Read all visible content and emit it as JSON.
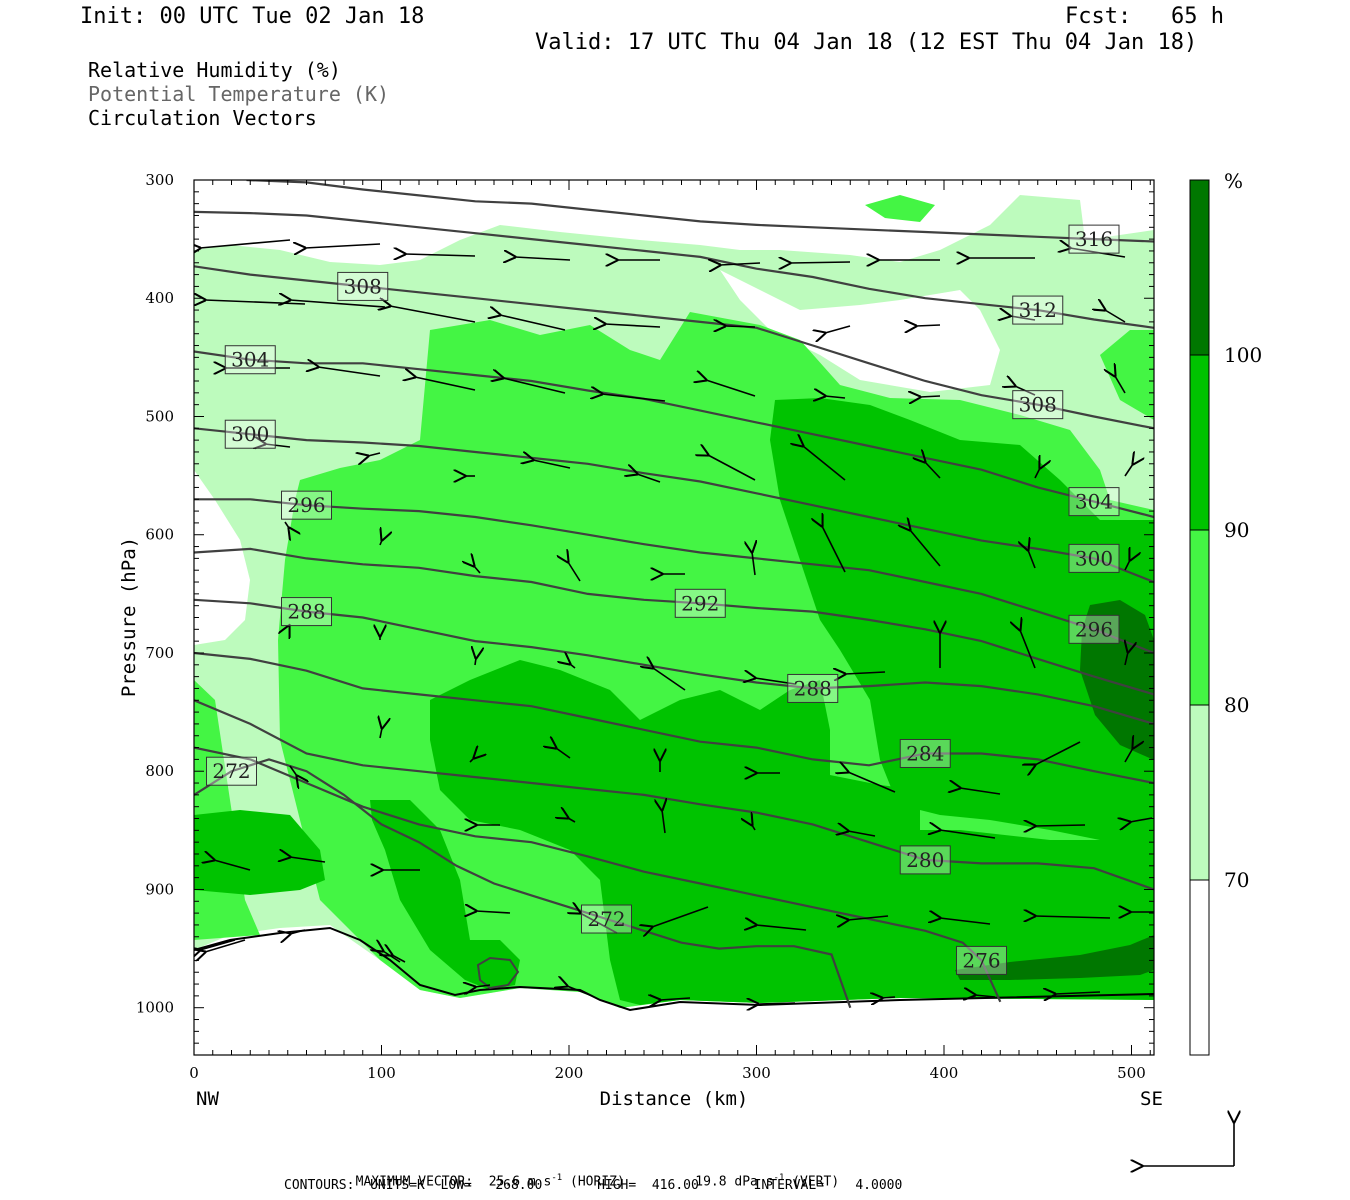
{
  "header": {
    "init": "Init: 00 UTC Tue 02 Jan 18",
    "fcst": "Fcst:   65 h",
    "valid": "Valid: 17 UTC Thu 04 Jan 18 (12 EST Thu 04 Jan 18)"
  },
  "legend": {
    "fields": [
      {
        "label": "Relative Humidity (%)",
        "color": "#000000"
      },
      {
        "label": "Potential Temperature (K)",
        "color": "#555555"
      },
      {
        "label": "Circulation Vectors",
        "color": "#000000"
      }
    ]
  },
  "footer": {
    "max_vector_prefix": "MAXIMUM VECTOR:  25.6 m s",
    "max_vector_horiz": "(HORIZ)",
    "max_vector_vert_prefix": "19.8 dPa s",
    "max_vector_vert": "(VERT)",
    "exp": "-1",
    "contours": "CONTOURS:  UNITS=K  LOW=   268.00       HIGH=  416.00       INTERVAL=    4.0000"
  },
  "chart_data": {
    "type": "cross-section",
    "xlabel": "Distance (km)",
    "ylabel": "Pressure (hPa)",
    "x_ticks": [
      0,
      100,
      200,
      300,
      400,
      500
    ],
    "y_ticks": [
      300,
      400,
      500,
      600,
      700,
      800,
      900,
      1000
    ],
    "xlim": [
      0,
      512
    ],
    "ylim": [
      300,
      1040
    ],
    "endpoints": {
      "left": "NW",
      "right": "SE"
    },
    "colorbar": {
      "unit": "%",
      "levels": [
        70,
        80,
        90,
        100
      ],
      "colors": [
        "#ffffff",
        "#bdfbbd",
        "#44f544",
        "#00c300",
        "#007700"
      ]
    },
    "theta_contours": [
      {
        "value": 272,
        "points": [
          [
            0,
            820
          ],
          [
            20,
            800
          ],
          [
            40,
            790
          ],
          [
            60,
            800
          ],
          [
            80,
            820
          ],
          [
            100,
            845
          ],
          [
            120,
            860
          ],
          [
            140,
            880
          ],
          [
            160,
            895
          ],
          [
            180,
            905
          ],
          [
            200,
            915
          ],
          [
            220,
            925
          ],
          [
            240,
            935
          ],
          [
            260,
            945
          ],
          [
            280,
            950
          ],
          [
            300,
            948
          ],
          [
            320,
            948
          ],
          [
            340,
            955
          ],
          [
            350,
            1000
          ]
        ]
      },
      {
        "value": 276,
        "points": [
          [
            0,
            780
          ],
          [
            30,
            790
          ],
          [
            60,
            810
          ],
          [
            90,
            830
          ],
          [
            120,
            845
          ],
          [
            150,
            855
          ],
          [
            180,
            860
          ],
          [
            210,
            872
          ],
          [
            240,
            885
          ],
          [
            270,
            895
          ],
          [
            300,
            905
          ],
          [
            330,
            915
          ],
          [
            360,
            925
          ],
          [
            390,
            935
          ],
          [
            410,
            945
          ],
          [
            420,
            960
          ],
          [
            430,
            995
          ]
        ]
      },
      {
        "value": 280,
        "points": [
          [
            0,
            740
          ],
          [
            30,
            760
          ],
          [
            60,
            785
          ],
          [
            90,
            795
          ],
          [
            120,
            800
          ],
          [
            150,
            805
          ],
          [
            180,
            810
          ],
          [
            210,
            815
          ],
          [
            240,
            820
          ],
          [
            270,
            828
          ],
          [
            300,
            835
          ],
          [
            330,
            845
          ],
          [
            360,
            860
          ],
          [
            390,
            875
          ],
          [
            420,
            878
          ],
          [
            450,
            878
          ],
          [
            480,
            882
          ],
          [
            512,
            900
          ]
        ]
      },
      {
        "value": 284,
        "points": [
          [
            0,
            700
          ],
          [
            30,
            705
          ],
          [
            60,
            715
          ],
          [
            90,
            730
          ],
          [
            120,
            735
          ],
          [
            150,
            740
          ],
          [
            180,
            745
          ],
          [
            210,
            755
          ],
          [
            240,
            765
          ],
          [
            270,
            775
          ],
          [
            300,
            780
          ],
          [
            330,
            790
          ],
          [
            360,
            795
          ],
          [
            390,
            785
          ],
          [
            420,
            785
          ],
          [
            450,
            790
          ],
          [
            480,
            800
          ],
          [
            512,
            810
          ]
        ]
      },
      {
        "value": 288,
        "points": [
          [
            0,
            655
          ],
          [
            30,
            658
          ],
          [
            60,
            665
          ],
          [
            90,
            670
          ],
          [
            120,
            680
          ],
          [
            150,
            690
          ],
          [
            180,
            695
          ],
          [
            210,
            702
          ],
          [
            240,
            710
          ],
          [
            270,
            718
          ],
          [
            300,
            725
          ],
          [
            330,
            730
          ],
          [
            360,
            728
          ],
          [
            390,
            725
          ],
          [
            420,
            728
          ],
          [
            450,
            735
          ],
          [
            480,
            745
          ],
          [
            512,
            760
          ]
        ]
      },
      {
        "value": 292,
        "points": [
          [
            0,
            615
          ],
          [
            30,
            612
          ],
          [
            60,
            620
          ],
          [
            90,
            625
          ],
          [
            120,
            628
          ],
          [
            150,
            635
          ],
          [
            180,
            640
          ],
          [
            210,
            650
          ],
          [
            240,
            655
          ],
          [
            270,
            658
          ],
          [
            300,
            662
          ],
          [
            330,
            665
          ],
          [
            360,
            672
          ],
          [
            390,
            680
          ],
          [
            420,
            690
          ],
          [
            450,
            705
          ],
          [
            480,
            720
          ],
          [
            512,
            735
          ]
        ]
      },
      {
        "value": 296,
        "points": [
          [
            0,
            570
          ],
          [
            30,
            570
          ],
          [
            60,
            575
          ],
          [
            90,
            578
          ],
          [
            120,
            580
          ],
          [
            150,
            585
          ],
          [
            180,
            592
          ],
          [
            210,
            600
          ],
          [
            240,
            608
          ],
          [
            270,
            615
          ],
          [
            300,
            620
          ],
          [
            330,
            625
          ],
          [
            360,
            630
          ],
          [
            390,
            640
          ],
          [
            420,
            650
          ],
          [
            450,
            665
          ],
          [
            480,
            680
          ],
          [
            512,
            700
          ]
        ]
      },
      {
        "value": 300,
        "points": [
          [
            0,
            510
          ],
          [
            30,
            515
          ],
          [
            60,
            520
          ],
          [
            90,
            522
          ],
          [
            120,
            525
          ],
          [
            150,
            530
          ],
          [
            180,
            535
          ],
          [
            210,
            540
          ],
          [
            240,
            548
          ],
          [
            270,
            555
          ],
          [
            300,
            565
          ],
          [
            330,
            575
          ],
          [
            360,
            585
          ],
          [
            390,
            595
          ],
          [
            420,
            605
          ],
          [
            450,
            612
          ],
          [
            480,
            620
          ],
          [
            512,
            640
          ]
        ]
      },
      {
        "value": 304,
        "points": [
          [
            0,
            445
          ],
          [
            30,
            452
          ],
          [
            60,
            455
          ],
          [
            90,
            455
          ],
          [
            120,
            460
          ],
          [
            150,
            465
          ],
          [
            180,
            470
          ],
          [
            210,
            478
          ],
          [
            240,
            485
          ],
          [
            270,
            495
          ],
          [
            300,
            505
          ],
          [
            330,
            515
          ],
          [
            360,
            525
          ],
          [
            390,
            535
          ],
          [
            420,
            545
          ],
          [
            450,
            560
          ],
          [
            480,
            572
          ],
          [
            512,
            585
          ]
        ]
      },
      {
        "value": 308,
        "points": [
          [
            0,
            373
          ],
          [
            30,
            380
          ],
          [
            60,
            385
          ],
          [
            90,
            390
          ],
          [
            120,
            395
          ],
          [
            150,
            400
          ],
          [
            180,
            405
          ],
          [
            210,
            410
          ],
          [
            240,
            415
          ],
          [
            270,
            420
          ],
          [
            300,
            425
          ],
          [
            330,
            440
          ],
          [
            360,
            455
          ],
          [
            390,
            470
          ],
          [
            420,
            482
          ],
          [
            450,
            490
          ],
          [
            480,
            500
          ],
          [
            512,
            510
          ]
        ]
      },
      {
        "value": 312,
        "points": [
          [
            0,
            327
          ],
          [
            30,
            328
          ],
          [
            60,
            330
          ],
          [
            90,
            335
          ],
          [
            120,
            340
          ],
          [
            150,
            345
          ],
          [
            180,
            350
          ],
          [
            210,
            355
          ],
          [
            240,
            360
          ],
          [
            270,
            365
          ],
          [
            300,
            375
          ],
          [
            330,
            382
          ],
          [
            360,
            392
          ],
          [
            390,
            400
          ],
          [
            420,
            405
          ],
          [
            450,
            410
          ],
          [
            480,
            418
          ],
          [
            512,
            425
          ]
        ]
      },
      {
        "value": 316,
        "points": [
          [
            28,
            300
          ],
          [
            60,
            302
          ],
          [
            90,
            308
          ],
          [
            120,
            313
          ],
          [
            150,
            318
          ],
          [
            180,
            320
          ],
          [
            210,
            325
          ],
          [
            240,
            330
          ],
          [
            270,
            335
          ],
          [
            300,
            338
          ],
          [
            330,
            340
          ],
          [
            360,
            342
          ],
          [
            390,
            344
          ],
          [
            420,
            346
          ],
          [
            450,
            348
          ],
          [
            480,
            350
          ],
          [
            512,
            352
          ]
        ]
      }
    ]
  }
}
